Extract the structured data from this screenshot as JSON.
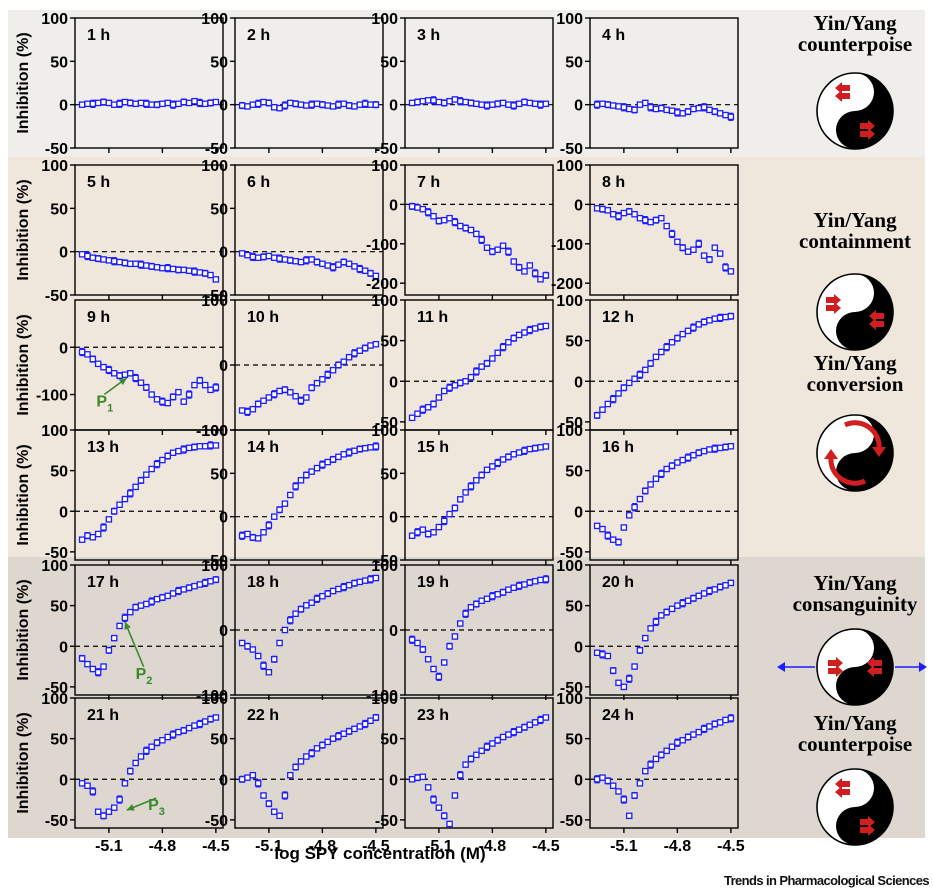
{
  "figure": {
    "y_axis_label": "Inhibition (%)",
    "x_axis_label": "log SPY concentration (M)",
    "x_tick_labels": [
      "-5.1",
      "-4.8",
      "-4.5"
    ],
    "brand": "Trends in Pharmacological Sciences"
  },
  "bands": [
    {
      "rows": [
        0
      ],
      "color": "#efeeeb"
    },
    {
      "rows": [
        1,
        2,
        3
      ],
      "color": "#efe6dc"
    },
    {
      "rows": [
        4,
        5
      ],
      "color": "#ddd7cf"
    }
  ],
  "yinyang_labels": [
    {
      "lines": [
        "Yin/Yang",
        "counterpoise"
      ],
      "symbol": "counterpoise-inward"
    },
    {
      "lines": [
        "Yin/Yang",
        "containment"
      ],
      "symbol": "containment"
    },
    {
      "lines": [
        "Yin/Yang",
        "conversion"
      ],
      "symbol": "conversion"
    },
    {
      "lines": [
        "Yin/Yang",
        "consanguinity"
      ],
      "symbol": "consanguinity"
    },
    {
      "lines": [
        "Yin/Yang",
        "counterpoise"
      ],
      "symbol": "counterpoise-inward"
    }
  ],
  "annotations": [
    {
      "panel": 8,
      "text": "P",
      "sub": "1",
      "target": [
        -5.0,
        -65
      ],
      "label_at": [
        -5.17,
        -125
      ]
    },
    {
      "panel": 16,
      "text": "P",
      "sub": "2",
      "target": [
        -5.01,
        30
      ],
      "label_at": [
        -4.95,
        -40
      ]
    },
    {
      "panel": 20,
      "text": "P",
      "sub": "3",
      "target": [
        -5.0,
        -38
      ],
      "label_at": [
        -4.88,
        -38
      ]
    }
  ],
  "colors": {
    "data": "#1d1dff",
    "annotation": "#3a8a2a",
    "arrow": "#d11f1f",
    "axis": "#000000"
  },
  "chart_data": {
    "type": "scatter",
    "x": [
      -5.25,
      -5.22,
      -5.19,
      -5.16,
      -5.13,
      -5.1,
      -5.07,
      -5.04,
      -5.01,
      -4.98,
      -4.95,
      -4.92,
      -4.89,
      -4.86,
      -4.83,
      -4.8,
      -4.77,
      -4.74,
      -4.71,
      -4.68,
      -4.65,
      -4.62,
      -4.59,
      -4.56,
      -4.53,
      -4.5
    ],
    "xlim": [
      -5.29,
      -4.46
    ],
    "xticks": [
      -5.1,
      -4.8,
      -4.5
    ],
    "error_bars": true,
    "reference_line": 0,
    "panels": [
      {
        "title": "1 h",
        "ylim": [
          -50,
          100
        ],
        "yticks": [
          -50,
          0,
          50,
          100
        ],
        "values": [
          0,
          1,
          1,
          2,
          3,
          2,
          0,
          1,
          3,
          2,
          1,
          2,
          1,
          0,
          0,
          1,
          2,
          0,
          1,
          3,
          2,
          4,
          2,
          1,
          2,
          3
        ]
      },
      {
        "title": "2 h",
        "ylim": [
          -50,
          100
        ],
        "yticks": [
          -50,
          0,
          50,
          100
        ],
        "values": [
          -1,
          -2,
          0,
          1,
          3,
          2,
          -3,
          -4,
          -1,
          2,
          1,
          0,
          -1,
          0,
          1,
          0,
          -1,
          -2,
          0,
          1,
          -1,
          -2,
          0,
          1,
          0,
          0
        ]
      },
      {
        "title": "3 h",
        "ylim": [
          -50,
          100
        ],
        "yticks": [
          -50,
          0,
          50,
          100
        ],
        "values": [
          2,
          3,
          4,
          5,
          5,
          3,
          2,
          4,
          6,
          4,
          3,
          2,
          1,
          0,
          -1,
          0,
          1,
          2,
          0,
          -1,
          1,
          3,
          2,
          1,
          0,
          1
        ]
      },
      {
        "title": "4 h",
        "ylim": [
          -50,
          100
        ],
        "yticks": [
          -50,
          0,
          50,
          100
        ],
        "values": [
          0,
          1,
          0,
          -1,
          -2,
          -3,
          -5,
          -6,
          0,
          2,
          -3,
          -5,
          -4,
          -6,
          -7,
          -9,
          -10,
          -8,
          -5,
          -4,
          -3,
          -6,
          -8,
          -10,
          -12,
          -14
        ]
      },
      {
        "title": "5 h",
        "ylim": [
          -50,
          100
        ],
        "yticks": [
          -50,
          0,
          50,
          100
        ],
        "values": [
          -3,
          -5,
          -7,
          -8,
          -9,
          -10,
          -11,
          -12,
          -13,
          -14,
          -14,
          -15,
          -16,
          -17,
          -18,
          -19,
          -19,
          -20,
          -21,
          -21,
          -22,
          -23,
          -24,
          -25,
          -27,
          -32
        ]
      },
      {
        "title": "6 h",
        "ylim": [
          -50,
          100
        ],
        "yticks": [
          -50,
          0,
          50,
          100
        ],
        "values": [
          -2,
          -4,
          -6,
          -7,
          -6,
          -5,
          -7,
          -8,
          -9,
          -10,
          -11,
          -12,
          -10,
          -9,
          -12,
          -14,
          -16,
          -18,
          -15,
          -12,
          -14,
          -17,
          -20,
          -22,
          -25,
          -28
        ]
      },
      {
        "title": "7 h",
        "ylim": [
          -230,
          100
        ],
        "yticks": [
          -200,
          -100,
          0,
          100
        ],
        "values": [
          -5,
          -8,
          -12,
          -20,
          -30,
          -42,
          -40,
          -35,
          -45,
          -55,
          -60,
          -65,
          -75,
          -90,
          -110,
          -120,
          -115,
          -105,
          -120,
          -145,
          -160,
          -170,
          -155,
          -175,
          -190,
          -180
        ]
      },
      {
        "title": "8 h",
        "ylim": [
          -230,
          100
        ],
        "yticks": [
          -200,
          -100,
          0,
          100
        ],
        "values": [
          -10,
          -12,
          -15,
          -25,
          -30,
          -22,
          -18,
          -25,
          -35,
          -40,
          -45,
          -40,
          -35,
          -55,
          -75,
          -95,
          -110,
          -120,
          -115,
          -100,
          -130,
          -140,
          -110,
          -125,
          -160,
          -170
        ]
      },
      {
        "title": "9 h",
        "ylim": [
          -175,
          100
        ],
        "yticks": [
          -100,
          0
        ],
        "values": [
          -10,
          -15,
          -25,
          -35,
          -42,
          -48,
          -55,
          -60,
          -58,
          -55,
          -65,
          -75,
          -85,
          -100,
          -110,
          -115,
          -118,
          -105,
          -95,
          -115,
          -100,
          -80,
          -70,
          -80,
          -90,
          -85
        ]
      },
      {
        "title": "10 h",
        "ylim": [
          -100,
          100
        ],
        "yticks": [
          -100,
          0,
          100
        ],
        "values": [
          -70,
          -72,
          -68,
          -60,
          -55,
          -50,
          -45,
          -40,
          -38,
          -42,
          -48,
          -55,
          -50,
          -35,
          -28,
          -22,
          -15,
          -8,
          0,
          5,
          12,
          18,
          22,
          26,
          30,
          32
        ]
      },
      {
        "title": "11 h",
        "ylim": [
          -60,
          100
        ],
        "yticks": [
          -50,
          0,
          50,
          100
        ],
        "values": [
          -45,
          -40,
          -35,
          -32,
          -28,
          -20,
          -12,
          -8,
          -5,
          -2,
          0,
          5,
          12,
          18,
          22,
          28,
          35,
          42,
          48,
          53,
          57,
          60,
          63,
          65,
          67,
          68
        ]
      },
      {
        "title": "12 h",
        "ylim": [
          -60,
          100
        ],
        "yticks": [
          -50,
          0,
          50,
          100
        ],
        "values": [
          -42,
          -35,
          -28,
          -22,
          -15,
          -8,
          -2,
          3,
          8,
          14,
          22,
          30,
          36,
          42,
          48,
          53,
          58,
          62,
          66,
          70,
          73,
          75,
          77,
          78,
          79,
          80
        ]
      },
      {
        "title": "13 h",
        "ylim": [
          -60,
          100
        ],
        "yticks": [
          -50,
          0,
          50,
          100
        ],
        "values": [
          -35,
          -30,
          -32,
          -28,
          -20,
          -10,
          0,
          8,
          15,
          22,
          30,
          38,
          45,
          52,
          58,
          63,
          68,
          72,
          74,
          76,
          78,
          79,
          80,
          80,
          81,
          81
        ]
      },
      {
        "title": "14 h",
        "ylim": [
          -50,
          100
        ],
        "yticks": [
          -50,
          0,
          50,
          100
        ],
        "values": [
          -22,
          -20,
          -24,
          -25,
          -18,
          -10,
          0,
          8,
          15,
          25,
          35,
          42,
          48,
          52,
          56,
          60,
          63,
          66,
          69,
          72,
          74,
          76,
          78,
          79,
          80,
          81
        ]
      },
      {
        "title": "15 h",
        "ylim": [
          -50,
          100
        ],
        "yticks": [
          -50,
          0,
          50,
          100
        ],
        "values": [
          -22,
          -18,
          -15,
          -20,
          -18,
          -12,
          -5,
          3,
          10,
          20,
          28,
          35,
          42,
          48,
          54,
          58,
          62,
          66,
          69,
          72,
          74,
          76,
          78,
          79,
          80,
          81
        ]
      },
      {
        "title": "16 h",
        "ylim": [
          -60,
          100
        ],
        "yticks": [
          -50,
          0,
          50,
          100
        ],
        "values": [
          -18,
          -22,
          -30,
          -35,
          -38,
          -20,
          -5,
          5,
          15,
          25,
          33,
          40,
          46,
          52,
          56,
          60,
          63,
          66,
          69,
          72,
          74,
          76,
          77,
          78,
          79,
          80
        ]
      },
      {
        "title": "17 h",
        "ylim": [
          -60,
          100
        ],
        "yticks": [
          -50,
          0,
          50,
          100
        ],
        "values": [
          -15,
          -22,
          -28,
          -32,
          -25,
          -5,
          10,
          25,
          35,
          42,
          48,
          50,
          52,
          55,
          58,
          60,
          62,
          65,
          68,
          70,
          72,
          74,
          76,
          78,
          80,
          82
        ]
      },
      {
        "title": "18 h",
        "ylim": [
          -100,
          100
        ],
        "yticks": [
          -100,
          0,
          100
        ],
        "values": [
          -20,
          -25,
          -30,
          -40,
          -55,
          -65,
          -45,
          -20,
          0,
          15,
          25,
          32,
          38,
          42,
          48,
          52,
          56,
          60,
          63,
          66,
          69,
          72,
          74,
          76,
          78,
          80
        ]
      },
      {
        "title": "19 h",
        "ylim": [
          -100,
          100
        ],
        "yticks": [
          -100,
          0,
          100
        ],
        "values": [
          -15,
          -20,
          -30,
          -45,
          -60,
          -72,
          -50,
          -25,
          -10,
          10,
          25,
          35,
          40,
          45,
          48,
          52,
          55,
          58,
          62,
          65,
          68,
          70,
          73,
          75,
          77,
          78
        ]
      },
      {
        "title": "20 h",
        "ylim": [
          -60,
          100
        ],
        "yticks": [
          -50,
          0,
          50,
          100
        ],
        "values": [
          -8,
          -10,
          -12,
          -30,
          -45,
          -50,
          -40,
          -25,
          -5,
          10,
          22,
          30,
          38,
          42,
          46,
          50,
          53,
          56,
          59,
          62,
          65,
          68,
          70,
          73,
          75,
          78
        ]
      },
      {
        "title": "21 h",
        "ylim": [
          -60,
          100
        ],
        "yticks": [
          -50,
          0,
          50,
          100
        ],
        "values": [
          -5,
          -8,
          -15,
          -40,
          -45,
          -40,
          -35,
          -25,
          -5,
          10,
          20,
          28,
          35,
          40,
          45,
          48,
          52,
          55,
          58,
          60,
          63,
          66,
          68,
          71,
          74,
          76
        ]
      },
      {
        "title": "22 h",
        "ylim": [
          -60,
          100
        ],
        "yticks": [
          -50,
          0,
          50,
          100
        ],
        "values": [
          0,
          2,
          5,
          -5,
          -20,
          -30,
          -40,
          -45,
          -20,
          5,
          15,
          22,
          28,
          32,
          38,
          42,
          46,
          50,
          53,
          56,
          59,
          62,
          65,
          68,
          72,
          76
        ]
      },
      {
        "title": "23 h",
        "ylim": [
          -60,
          100
        ],
        "yticks": [
          -50,
          0,
          50,
          100
        ],
        "values": [
          0,
          2,
          3,
          -10,
          -25,
          -35,
          -45,
          -55,
          -20,
          5,
          18,
          25,
          30,
          35,
          40,
          44,
          48,
          52,
          55,
          58,
          61,
          64,
          67,
          70,
          73,
          76
        ]
      },
      {
        "title": "24 h",
        "ylim": [
          -60,
          100
        ],
        "yticks": [
          -50,
          0,
          50,
          100
        ],
        "values": [
          0,
          2,
          -2,
          -8,
          -15,
          -25,
          -45,
          -20,
          -5,
          10,
          18,
          25,
          30,
          35,
          40,
          45,
          48,
          52,
          55,
          58,
          62,
          65,
          68,
          70,
          73,
          75
        ]
      }
    ]
  }
}
